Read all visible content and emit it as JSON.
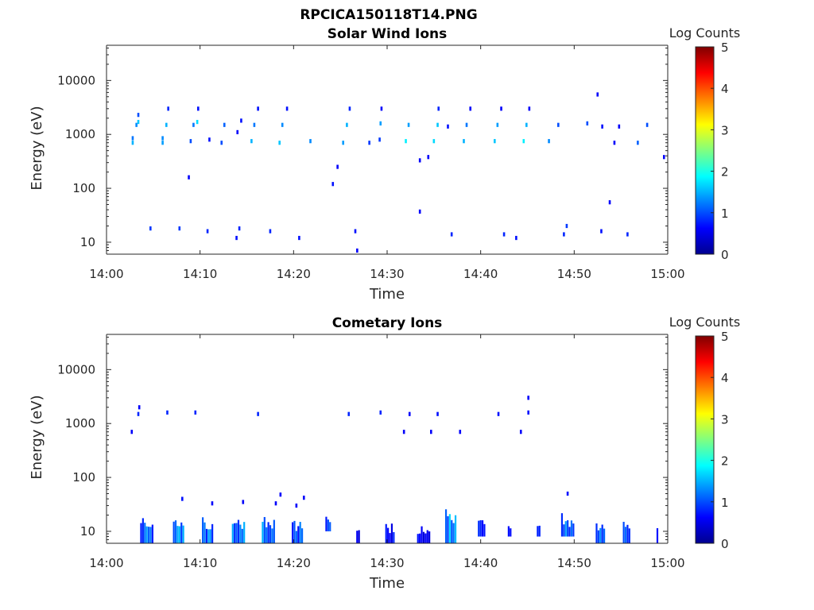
{
  "figure": {
    "title": "RPCICA150118T14.PNG"
  },
  "colors": {
    "colormap": [
      "#00008f",
      "#0000ff",
      "#0080ff",
      "#00ffff",
      "#80ff80",
      "#ffff00",
      "#ff8000",
      "#ff0000",
      "#800000"
    ],
    "axis": "#262626"
  },
  "chart_data": [
    {
      "type": "heatmap",
      "title": "Solar Wind Ions",
      "xlabel": "Time",
      "ylabel": "Energy (eV)",
      "x_ticks": [
        "14:00",
        "14:10",
        "14:20",
        "14:30",
        "14:40",
        "14:50",
        "15:00"
      ],
      "xlim_minutes": [
        0,
        60
      ],
      "y_scale": "log",
      "ylim": [
        6,
        45000
      ],
      "y_ticks": [
        10,
        100,
        1000,
        10000
      ],
      "y_tick_labels": [
        "10",
        "100",
        "1000",
        "10000"
      ],
      "colorbar": {
        "label": "Log Counts",
        "range": [
          0,
          5
        ],
        "ticks": [
          "0",
          "1",
          "2",
          "3",
          "4",
          "5"
        ]
      },
      "cells": [
        {
          "t": 2.8,
          "e": 700,
          "logc": 1.5
        },
        {
          "t": 2.8,
          "e": 850,
          "logc": 1.2
        },
        {
          "t": 3.2,
          "e": 1500,
          "logc": 1.3
        },
        {
          "t": 3.4,
          "e": 1700,
          "logc": 1.6
        },
        {
          "t": 3.4,
          "e": 2300,
          "logc": 1.0
        },
        {
          "t": 6.0,
          "e": 700,
          "logc": 1.4
        },
        {
          "t": 6.0,
          "e": 850,
          "logc": 1.3
        },
        {
          "t": 6.4,
          "e": 1500,
          "logc": 1.5
        },
        {
          "t": 6.6,
          "e": 3000,
          "logc": 0.8
        },
        {
          "t": 8.8,
          "e": 160,
          "logc": 0.6
        },
        {
          "t": 9.0,
          "e": 750,
          "logc": 1.0
        },
        {
          "t": 9.3,
          "e": 1500,
          "logc": 1.2
        },
        {
          "t": 9.7,
          "e": 1700,
          "logc": 1.7
        },
        {
          "t": 9.8,
          "e": 3000,
          "logc": 0.7
        },
        {
          "t": 11.0,
          "e": 800,
          "logc": 0.7
        },
        {
          "t": 12.3,
          "e": 700,
          "logc": 1.0
        },
        {
          "t": 12.6,
          "e": 1500,
          "logc": 1.1
        },
        {
          "t": 14.0,
          "e": 1100,
          "logc": 0.6
        },
        {
          "t": 14.4,
          "e": 1800,
          "logc": 0.7
        },
        {
          "t": 15.5,
          "e": 750,
          "logc": 1.5
        },
        {
          "t": 15.8,
          "e": 1500,
          "logc": 1.2
        },
        {
          "t": 16.2,
          "e": 3000,
          "logc": 0.7
        },
        {
          "t": 18.5,
          "e": 700,
          "logc": 1.6
        },
        {
          "t": 18.8,
          "e": 1500,
          "logc": 1.3
        },
        {
          "t": 19.3,
          "e": 3000,
          "logc": 0.7
        },
        {
          "t": 21.8,
          "e": 750,
          "logc": 1.3
        },
        {
          "t": 24.2,
          "e": 120,
          "logc": 0.7
        },
        {
          "t": 24.7,
          "e": 250,
          "logc": 0.6
        },
        {
          "t": 25.3,
          "e": 700,
          "logc": 1.4
        },
        {
          "t": 25.7,
          "e": 1500,
          "logc": 1.5
        },
        {
          "t": 26.0,
          "e": 3000,
          "logc": 0.8
        },
        {
          "t": 28.1,
          "e": 700,
          "logc": 0.9
        },
        {
          "t": 29.2,
          "e": 800,
          "logc": 0.9
        },
        {
          "t": 29.3,
          "e": 1600,
          "logc": 1.4
        },
        {
          "t": 29.4,
          "e": 3000,
          "logc": 0.6
        },
        {
          "t": 32.0,
          "e": 750,
          "logc": 1.8
        },
        {
          "t": 32.3,
          "e": 1500,
          "logc": 1.4
        },
        {
          "t": 33.5,
          "e": 330,
          "logc": 0.6
        },
        {
          "t": 33.5,
          "e": 37,
          "logc": 0.6
        },
        {
          "t": 34.4,
          "e": 380,
          "logc": 0.6
        },
        {
          "t": 35.0,
          "e": 750,
          "logc": 1.7
        },
        {
          "t": 35.4,
          "e": 1500,
          "logc": 1.6
        },
        {
          "t": 35.5,
          "e": 3000,
          "logc": 0.8
        },
        {
          "t": 36.5,
          "e": 1400,
          "logc": 0.7
        },
        {
          "t": 38.2,
          "e": 750,
          "logc": 1.5
        },
        {
          "t": 38.5,
          "e": 1500,
          "logc": 1.2
        },
        {
          "t": 38.9,
          "e": 3000,
          "logc": 0.6
        },
        {
          "t": 41.5,
          "e": 750,
          "logc": 1.6
        },
        {
          "t": 41.8,
          "e": 1500,
          "logc": 1.4
        },
        {
          "t": 42.2,
          "e": 3000,
          "logc": 0.6
        },
        {
          "t": 44.6,
          "e": 750,
          "logc": 1.8
        },
        {
          "t": 44.9,
          "e": 1500,
          "logc": 1.5
        },
        {
          "t": 45.2,
          "e": 3000,
          "logc": 0.6
        },
        {
          "t": 47.3,
          "e": 750,
          "logc": 1.3
        },
        {
          "t": 48.3,
          "e": 1500,
          "logc": 1.0
        },
        {
          "t": 51.4,
          "e": 1600,
          "logc": 1.0
        },
        {
          "t": 52.5,
          "e": 5500,
          "logc": 0.6
        },
        {
          "t": 53.0,
          "e": 1400,
          "logc": 0.7
        },
        {
          "t": 53.8,
          "e": 55,
          "logc": 0.6
        },
        {
          "t": 54.3,
          "e": 700,
          "logc": 0.6
        },
        {
          "t": 54.8,
          "e": 1400,
          "logc": 0.6
        },
        {
          "t": 56.8,
          "e": 700,
          "logc": 1.1
        },
        {
          "t": 57.8,
          "e": 1500,
          "logc": 1.0
        },
        {
          "t": 59.6,
          "e": 380,
          "logc": 0.6
        },
        {
          "t": 4.7,
          "e": 18,
          "logc": 0.9
        },
        {
          "t": 7.8,
          "e": 18,
          "logc": 0.9
        },
        {
          "t": 10.8,
          "e": 16,
          "logc": 0.8
        },
        {
          "t": 13.9,
          "e": 12,
          "logc": 0.7
        },
        {
          "t": 14.2,
          "e": 18,
          "logc": 0.8
        },
        {
          "t": 17.5,
          "e": 16,
          "logc": 0.8
        },
        {
          "t": 20.6,
          "e": 12,
          "logc": 0.7
        },
        {
          "t": 26.6,
          "e": 16,
          "logc": 0.7
        },
        {
          "t": 26.8,
          "e": 7,
          "logc": 0.6
        },
        {
          "t": 36.9,
          "e": 14,
          "logc": 0.8
        },
        {
          "t": 42.5,
          "e": 14,
          "logc": 0.8
        },
        {
          "t": 43.8,
          "e": 12,
          "logc": 0.7
        },
        {
          "t": 48.9,
          "e": 14,
          "logc": 0.8
        },
        {
          "t": 49.2,
          "e": 20,
          "logc": 0.9
        },
        {
          "t": 52.9,
          "e": 16,
          "logc": 0.7
        },
        {
          "t": 55.7,
          "e": 14,
          "logc": 0.8
        }
      ]
    },
    {
      "type": "heatmap",
      "title": "Cometary Ions",
      "xlabel": "Time",
      "ylabel": "Energy (eV)",
      "x_ticks": [
        "14:00",
        "14:10",
        "14:20",
        "14:30",
        "14:40",
        "14:50",
        "15:00"
      ],
      "xlim_minutes": [
        0,
        60
      ],
      "y_scale": "log",
      "ylim": [
        6,
        45000
      ],
      "y_ticks": [
        10,
        100,
        1000,
        10000
      ],
      "y_tick_labels": [
        "10",
        "100",
        "1000",
        "10000"
      ],
      "colorbar": {
        "label": "Log Counts",
        "range": [
          0,
          5
        ],
        "ticks": [
          "0",
          "1",
          "2",
          "3",
          "4",
          "5"
        ]
      },
      "cells": [
        {
          "t": 2.7,
          "e": 700,
          "logc": 0.6
        },
        {
          "t": 3.4,
          "e": 1500,
          "logc": 0.8
        },
        {
          "t": 3.5,
          "e": 2000,
          "logc": 0.6
        },
        {
          "t": 6.5,
          "e": 1600,
          "logc": 0.8
        },
        {
          "t": 9.5,
          "e": 1600,
          "logc": 0.8
        },
        {
          "t": 16.2,
          "e": 1500,
          "logc": 0.8
        },
        {
          "t": 25.9,
          "e": 1500,
          "logc": 0.8
        },
        {
          "t": 29.3,
          "e": 1600,
          "logc": 0.8
        },
        {
          "t": 31.8,
          "e": 700,
          "logc": 0.6
        },
        {
          "t": 32.4,
          "e": 1500,
          "logc": 0.6
        },
        {
          "t": 34.7,
          "e": 700,
          "logc": 0.6
        },
        {
          "t": 35.4,
          "e": 1500,
          "logc": 0.7
        },
        {
          "t": 37.8,
          "e": 700,
          "logc": 0.6
        },
        {
          "t": 41.9,
          "e": 1500,
          "logc": 0.7
        },
        {
          "t": 44.3,
          "e": 700,
          "logc": 0.6
        },
        {
          "t": 45.1,
          "e": 1600,
          "logc": 0.7
        },
        {
          "t": 45.1,
          "e": 3000,
          "logc": 0.6
        },
        {
          "t": 8.1,
          "e": 40,
          "logc": 0.7
        },
        {
          "t": 11.3,
          "e": 33,
          "logc": 0.6
        },
        {
          "t": 14.6,
          "e": 35,
          "logc": 0.6
        },
        {
          "t": 18.1,
          "e": 33,
          "logc": 0.6
        },
        {
          "t": 18.6,
          "e": 48,
          "logc": 0.6
        },
        {
          "t": 21.1,
          "e": 42,
          "logc": 0.6
        },
        {
          "t": 20.3,
          "e": 30,
          "logc": 0.6
        },
        {
          "t": 49.3,
          "e": 50,
          "logc": 0.7
        }
      ],
      "clusters": [
        {
          "t0": 3.6,
          "t1": 5.0,
          "e0": 6,
          "e1": 22,
          "logc": 1.2
        },
        {
          "t0": 7.1,
          "t1": 8.3,
          "e0": 6,
          "e1": 22,
          "logc": 1.3
        },
        {
          "t0": 10.2,
          "t1": 11.4,
          "e0": 6,
          "e1": 22,
          "logc": 1.2
        },
        {
          "t0": 13.4,
          "t1": 14.8,
          "e0": 6,
          "e1": 24,
          "logc": 1.4
        },
        {
          "t0": 16.6,
          "t1": 17.9,
          "e0": 6,
          "e1": 22,
          "logc": 1.3
        },
        {
          "t0": 19.8,
          "t1": 20.9,
          "e0": 6,
          "e1": 20,
          "logc": 1.1
        },
        {
          "t0": 23.4,
          "t1": 24.0,
          "e0": 10,
          "e1": 20,
          "logc": 0.9
        },
        {
          "t0": 26.7,
          "t1": 27.0,
          "e0": 6,
          "e1": 14,
          "logc": 0.6
        },
        {
          "t0": 29.8,
          "t1": 30.8,
          "e0": 6,
          "e1": 18,
          "logc": 0.7
        },
        {
          "t0": 33.2,
          "t1": 34.6,
          "e0": 6,
          "e1": 13,
          "logc": 0.6
        },
        {
          "t0": 36.2,
          "t1": 37.4,
          "e0": 6,
          "e1": 28,
          "logc": 1.5
        },
        {
          "t0": 39.7,
          "t1": 40.4,
          "e0": 8,
          "e1": 22,
          "logc": 1.0
        },
        {
          "t0": 42.9,
          "t1": 43.2,
          "e0": 8,
          "e1": 14,
          "logc": 0.7
        },
        {
          "t0": 46.0,
          "t1": 46.3,
          "e0": 8,
          "e1": 18,
          "logc": 0.7
        },
        {
          "t0": 48.6,
          "t1": 50.0,
          "e0": 8,
          "e1": 22,
          "logc": 1.3
        },
        {
          "t0": 52.3,
          "t1": 53.3,
          "e0": 6,
          "e1": 20,
          "logc": 1.1
        },
        {
          "t0": 55.2,
          "t1": 55.9,
          "e0": 6,
          "e1": 18,
          "logc": 1.1
        },
        {
          "t0": 58.8,
          "t1": 59.0,
          "e0": 6,
          "e1": 18,
          "logc": 0.7
        }
      ]
    }
  ]
}
